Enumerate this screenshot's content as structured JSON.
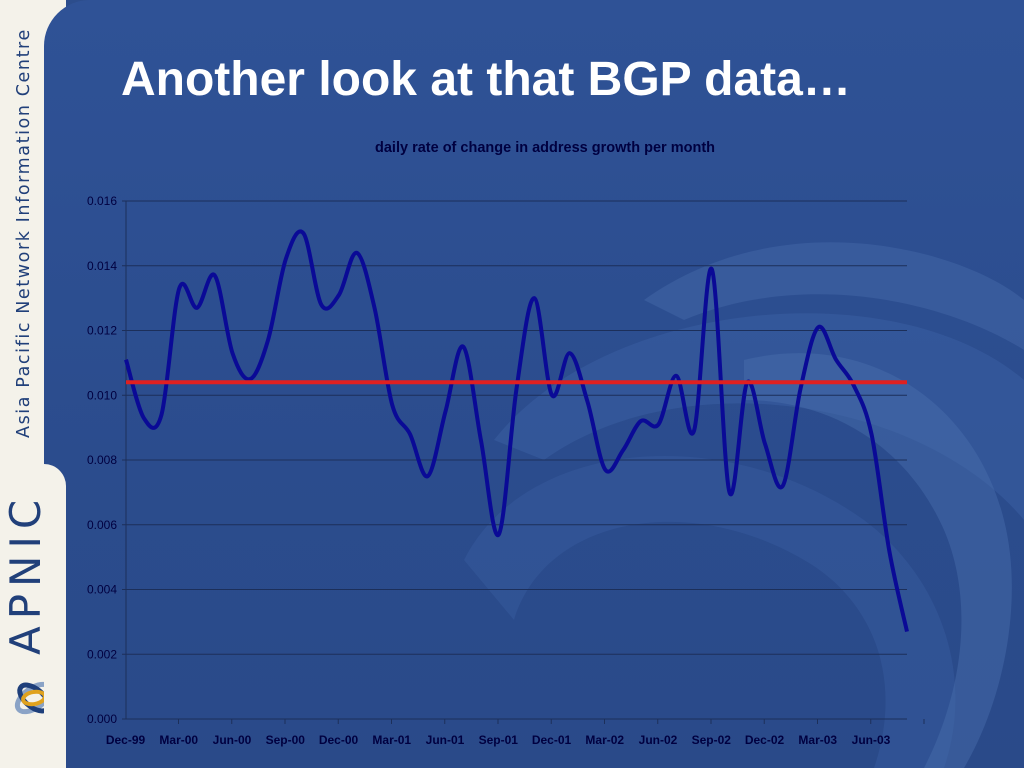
{
  "sidebar": {
    "org_name": "Asia Pacific Network Information Centre",
    "brand": "APNIC"
  },
  "slide": {
    "title": "Another look at that BGP data…"
  },
  "colors": {
    "background": "#2c4d8c",
    "sidebar": "#f4f2ea",
    "series_line": "#0a0a96",
    "reference_line": "#e02020",
    "gridline": "#1c2f5a"
  },
  "chart_data": {
    "type": "line",
    "title": "daily rate of change in address growth per month",
    "xlabel": "",
    "ylabel": "",
    "ylim": [
      0,
      0.016
    ],
    "yticks": [
      "0.000",
      "0.002",
      "0.004",
      "0.006",
      "0.008",
      "0.010",
      "0.012",
      "0.014",
      "0.016"
    ],
    "x_tick_labels": [
      "Dec-99",
      "Mar-00",
      "Jun-00",
      "Sep-00",
      "Dec-00",
      "Mar-01",
      "Jun-01",
      "Sep-01",
      "Dec-01",
      "Mar-02",
      "Jun-02",
      "Sep-02",
      "Dec-02",
      "Mar-03",
      "Jun-03"
    ],
    "grid": true,
    "legend": "none",
    "series": [
      {
        "x": [
          "Dec-99",
          "Jan-00",
          "Feb-00",
          "Mar-00",
          "Apr-00",
          "May-00",
          "Jun-00",
          "Jul-00",
          "Aug-00",
          "Sep-00",
          "Oct-00",
          "Nov-00",
          "Dec-00",
          "Jan-01",
          "Feb-01",
          "Mar-01",
          "Apr-01",
          "May-01",
          "Jun-01",
          "Jul-01",
          "Aug-01",
          "Sep-01",
          "Oct-01",
          "Nov-01",
          "Dec-01",
          "Jan-02",
          "Feb-02",
          "Mar-02",
          "Apr-02",
          "May-02",
          "Jun-02",
          "Jul-02",
          "Aug-02",
          "Sep-02",
          "Oct-02",
          "Nov-02",
          "Dec-02",
          "Jan-03",
          "Feb-03",
          "Mar-03",
          "Apr-03",
          "May-03",
          "Jun-03",
          "Jul-03",
          "Aug-03"
        ],
        "values": [
          0.0111,
          0.0093,
          0.0094,
          0.0133,
          0.0127,
          0.0137,
          0.0113,
          0.0105,
          0.0117,
          0.0142,
          0.015,
          0.0128,
          0.0131,
          0.0144,
          0.0127,
          0.0097,
          0.0088,
          0.0075,
          0.0095,
          0.0115,
          0.0086,
          0.0057,
          0.0102,
          0.013,
          0.01,
          0.0113,
          0.0098,
          0.0077,
          0.0083,
          0.0092,
          0.0091,
          0.0106,
          0.0089,
          0.0139,
          0.007,
          0.0104,
          0.0085,
          0.0072,
          0.0102,
          0.0121,
          0.0111,
          0.0103,
          0.0088,
          0.0052,
          0.0027
        ]
      },
      {
        "x": [
          "Dec-99",
          "Aug-03"
        ],
        "values": [
          0.0104,
          0.0104
        ]
      }
    ]
  }
}
